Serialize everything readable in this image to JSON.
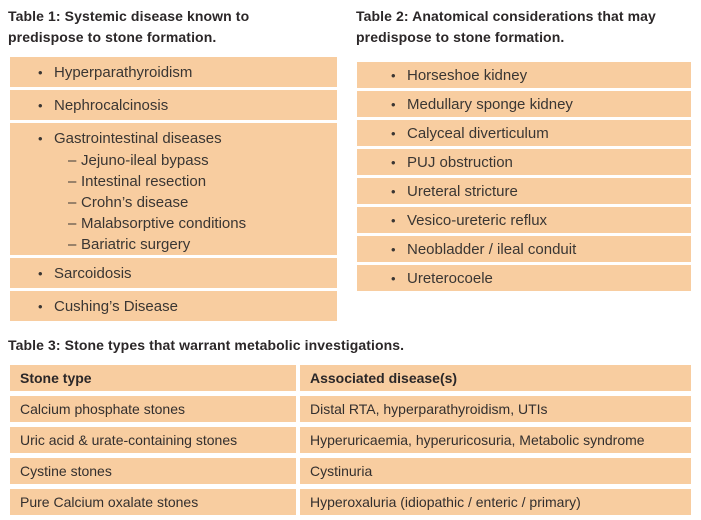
{
  "colors": {
    "row_background": "#f8cda0",
    "title_text": "#2b2728",
    "item_text": "#3a3633",
    "page_background": "#ffffff"
  },
  "glyphs": {
    "bullet": "•",
    "dash": "–"
  },
  "table1": {
    "title": "Table 1: Systemic disease known to predispose to stone formation.",
    "items": [
      {
        "label": "Hyperparathyroidism"
      },
      {
        "label": "Nephrocalcinosis"
      },
      {
        "label": "Gastrointestinal diseases",
        "sub": [
          "Jejuno-ileal bypass",
          "Intestinal resection",
          "Crohn’s disease",
          "Malabsorptive conditions",
          "Bariatric surgery"
        ]
      },
      {
        "label": "Sarcoidosis"
      },
      {
        "label": "Cushing’s Disease"
      }
    ]
  },
  "table2": {
    "title": "Table 2: Anatomical considerations that may predispose to stone formation.",
    "items": [
      "Horseshoe kidney",
      "Medullary sponge kidney",
      "Calyceal diverticulum",
      "PUJ obstruction",
      "Ureteral stricture",
      "Vesico-ureteric reflux",
      "Neobladder / ileal conduit",
      "Ureterocoele"
    ]
  },
  "table3": {
    "title": "Table 3: Stone types that warrant metabolic investigations.",
    "headers": [
      "Stone type",
      "Associated disease(s)"
    ],
    "rows": [
      [
        "Calcium phosphate stones",
        "Distal RTA, hyperparathyroidism, UTIs"
      ],
      [
        "Uric acid & urate-containing stones",
        "Hyperuricaemia, hyperuricosuria, Metabolic syndrome"
      ],
      [
        "Cystine stones",
        "Cystinuria"
      ],
      [
        "Pure Calcium oxalate stones",
        "Hyperoxaluria (idiopathic / enteric / primary)"
      ]
    ]
  }
}
